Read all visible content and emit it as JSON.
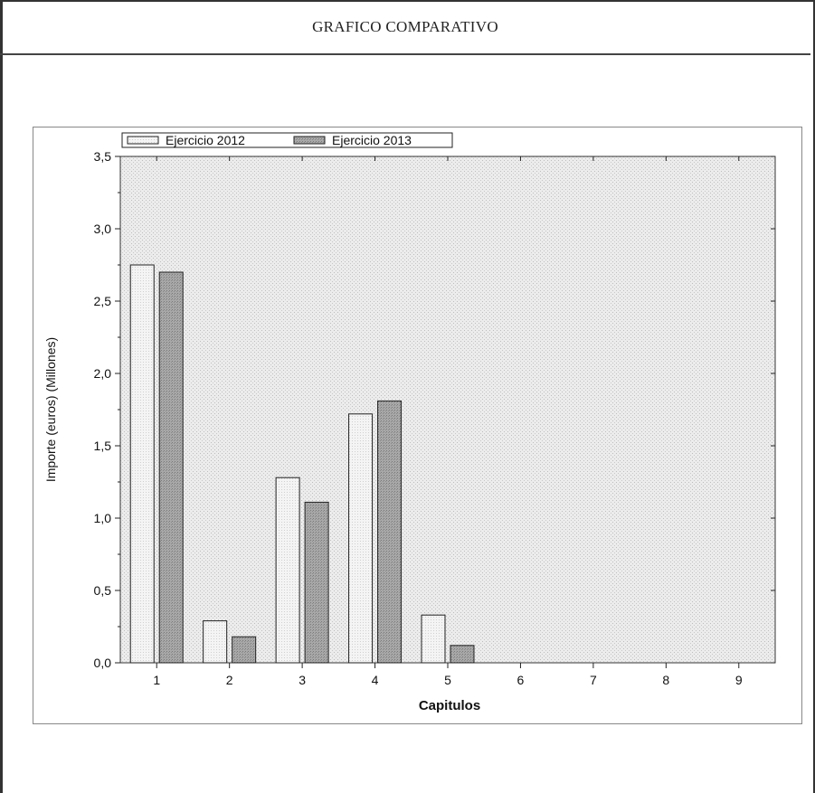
{
  "page": {
    "title": "GRAFICO COMPARATIVO"
  },
  "chart_data": {
    "type": "bar",
    "categories": [
      "1",
      "2",
      "3",
      "4",
      "5",
      "6",
      "7",
      "8",
      "9"
    ],
    "series": [
      {
        "name": "Ejercicio 2012",
        "values": [
          2.75,
          0.29,
          1.28,
          1.72,
          0.33,
          0,
          0,
          0,
          0
        ],
        "color": "#f2f2f2"
      },
      {
        "name": "Ejercicio 2013",
        "values": [
          2.7,
          0.18,
          1.11,
          1.81,
          0.12,
          0,
          0,
          0,
          0
        ],
        "color": "#9a9a9a"
      }
    ],
    "xlabel": "Capitulos",
    "ylabel": "Importe (euros) (Millones)",
    "ylim": [
      0,
      3.5
    ],
    "yticks": [
      "0,0",
      "0,5",
      "1,0",
      "1,5",
      "2,0",
      "2,5",
      "3,0",
      "3,5"
    ],
    "grid": false,
    "legend_position": "top-left",
    "plot_background": "#e6e6e6"
  }
}
